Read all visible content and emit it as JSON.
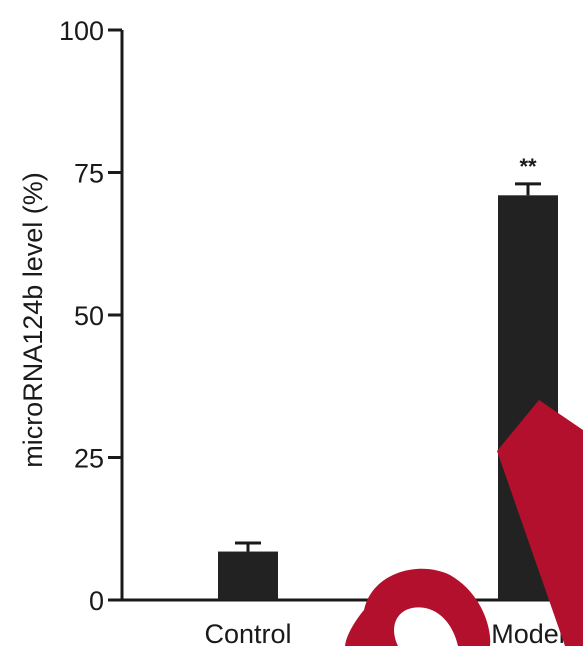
{
  "chart_data": {
    "type": "bar",
    "categories": [
      "Control",
      "Model"
    ],
    "values": [
      8.5,
      71
    ],
    "errors": [
      1.5,
      2
    ],
    "annotations": [
      "",
      "**"
    ],
    "ylabel": "microRNA124b level (%)",
    "xlabel": "",
    "ylim": [
      0,
      100
    ],
    "yticks": [
      0,
      25,
      50,
      75,
      100
    ],
    "ytick_labels": [
      "0",
      "25",
      "50",
      "75",
      "100"
    ],
    "grid": false,
    "bar_color": "#222222"
  },
  "overlay": {
    "color": "#b3102d",
    "icon": "red-checkmark-overlay"
  }
}
